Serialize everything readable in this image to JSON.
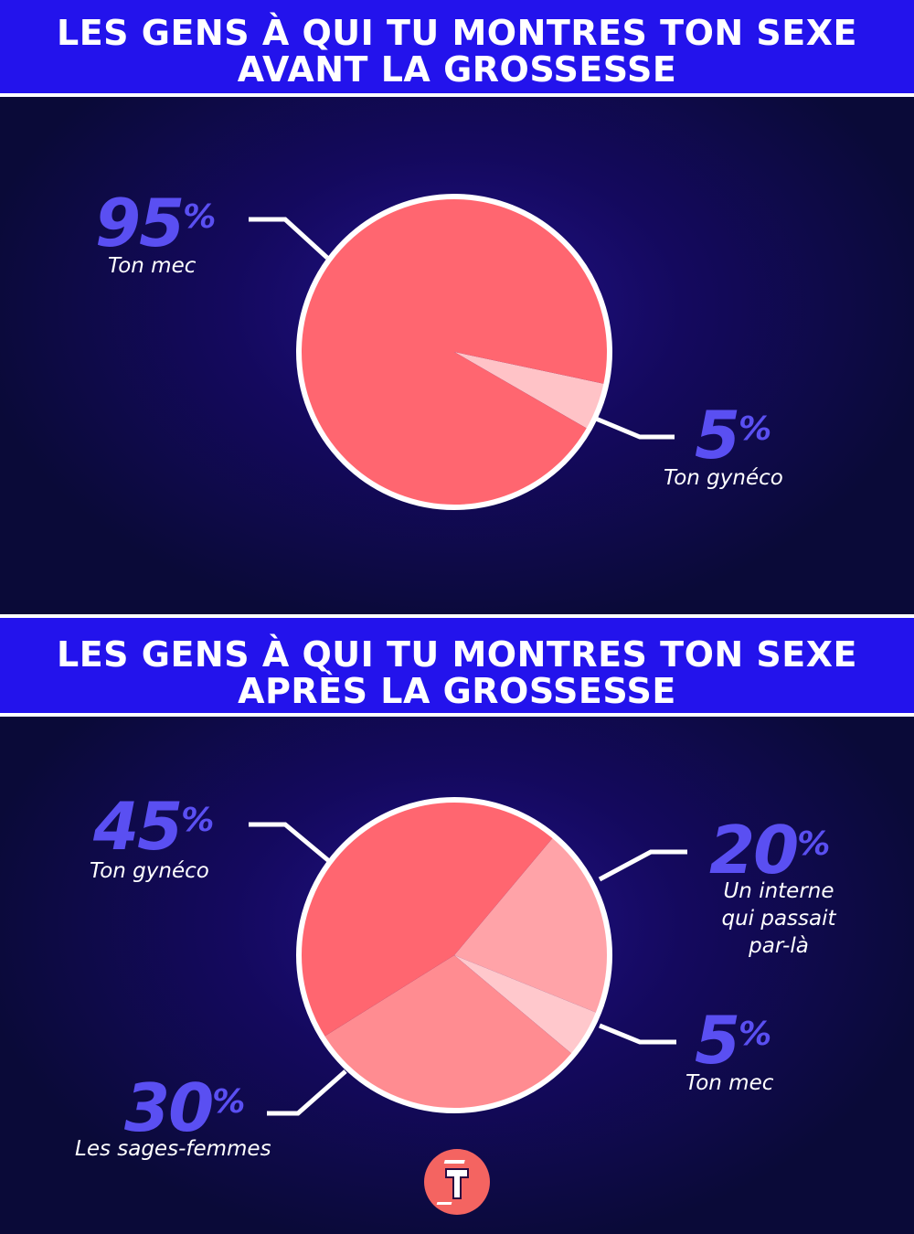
{
  "header1": {
    "line1": "LES GENS À QUI TU MONTRES TON SEXE",
    "line2": "AVANT LA GROSSESSE"
  },
  "header2": {
    "line1": "LES GENS À QUI TU MONTRES TON SEXE",
    "line2": "APRÈS LA GROSSESSE"
  },
  "percent_sign": "%",
  "chart_data": [
    {
      "type": "pie",
      "title": "LES GENS À QUI TU MONTRES TON SEXE AVANT LA GROSSESSE",
      "slices": [
        {
          "label": "Ton mec",
          "value": 95,
          "display": "95",
          "color": "#ff6670"
        },
        {
          "label": "Ton gynéco",
          "value": 5,
          "display": "5",
          "color": "#ffc3c7"
        }
      ]
    },
    {
      "type": "pie",
      "title": "LES GENS À QUI TU MONTRES TON SEXE APRÈS LA GROSSESSE",
      "slices": [
        {
          "label": "Ton gynéco",
          "value": 45,
          "display": "45",
          "color": "#ff6670"
        },
        {
          "label": "Un interne qui passait par-là",
          "value": 20,
          "display": "20",
          "color": "#ffa3a8"
        },
        {
          "label": "Ton mec",
          "value": 5,
          "display": "5",
          "color": "#ffc8cc"
        },
        {
          "label": "Les sages-femmes",
          "value": 30,
          "display": "30",
          "color": "#ff8c91"
        }
      ]
    }
  ],
  "colors": {
    "background": "#0b0a3c",
    "header": "#2313ec",
    "percent": "#5a4ff2"
  },
  "logo": {
    "text": "T",
    "color": "#f46461"
  }
}
